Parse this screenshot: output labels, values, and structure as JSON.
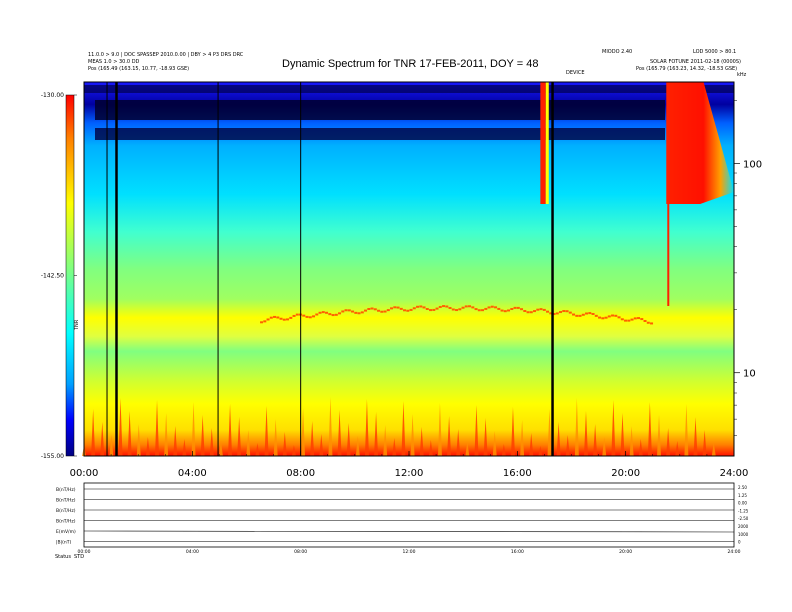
{
  "chart_data": {
    "type": "heatmap",
    "title": "Dynamic Spectrum for TNR 17-FEB-2011, DOY = 48",
    "header": {
      "left_line1": "11.0.0 > 9.0 | DOC SPASSEP 2010.0.00 | DBY > 4 P3 DRS DRC",
      "left_line2": "MEAS 1.0 > 30.0 DD",
      "left_line3": "Pos (165.49 (163.15, 10.77, -18.93 GSE)",
      "right_line1": "MIODO 2.40",
      "right_line2": "LOD 5000 > 80.1",
      "right_line3": "SOLAR FOTUNE 2011-02-18 (0000S)",
      "right_line4": "Pos (165.79 (163.23, 14.32, -18.53 GSE)",
      "right_center": "DEVICE",
      "right_unit": "kHz"
    },
    "colorbar": {
      "label": "TNR",
      "tick_labels": [
        "-130.00",
        "-142.50",
        "-155.00"
      ],
      "range": [
        -155.0,
        -130.0
      ],
      "colors": [
        "#000080",
        "#0000ff",
        "#00a0ff",
        "#00ffff",
        "#80ff80",
        "#ffff00",
        "#ff8000",
        "#ff0000"
      ]
    },
    "x_axis": {
      "tick_labels": [
        "00:00",
        "04:00",
        "08:00",
        "12:00",
        "16:00",
        "20:00",
        "24:00"
      ],
      "range_hours": [
        0,
        24
      ]
    },
    "y_axis": {
      "scale": "log",
      "tick_labels": [
        "100",
        "10"
      ],
      "range_khz": [
        4,
        245
      ]
    },
    "features": [
      {
        "kind": "data-gap-line",
        "hour": 0.85
      },
      {
        "kind": "data-gap-line",
        "hour": 1.2
      },
      {
        "kind": "data-gap-line",
        "hour": 4.95
      },
      {
        "kind": "data-gap-line",
        "hour": 8.0
      },
      {
        "kind": "data-gap-line",
        "hour": 17.3
      },
      {
        "kind": "radio-burst",
        "start_hour": 16.85,
        "end_hour": 17.05
      },
      {
        "kind": "radio-burst",
        "start_hour": 21.5,
        "end_hour": 24.0
      }
    ],
    "bottom_panels": {
      "labels": [
        "B(nT/Hz)",
        "B(nT/Hz)",
        "B(nT/Hz)",
        "B(nT/Hz)",
        "E(mV/m)",
        "|B|(nT)"
      ],
      "right_labels": [
        "2.50",
        "1.25",
        "0.00",
        "-1.25",
        "-2.50",
        "2000",
        "1000",
        "0"
      ],
      "x_labels": [
        "00:00",
        "04:00",
        "08:00",
        "12:00",
        "16:00",
        "20:00",
        "24:00"
      ],
      "footer_left": "Status",
      "footer_code": "STD"
    }
  }
}
